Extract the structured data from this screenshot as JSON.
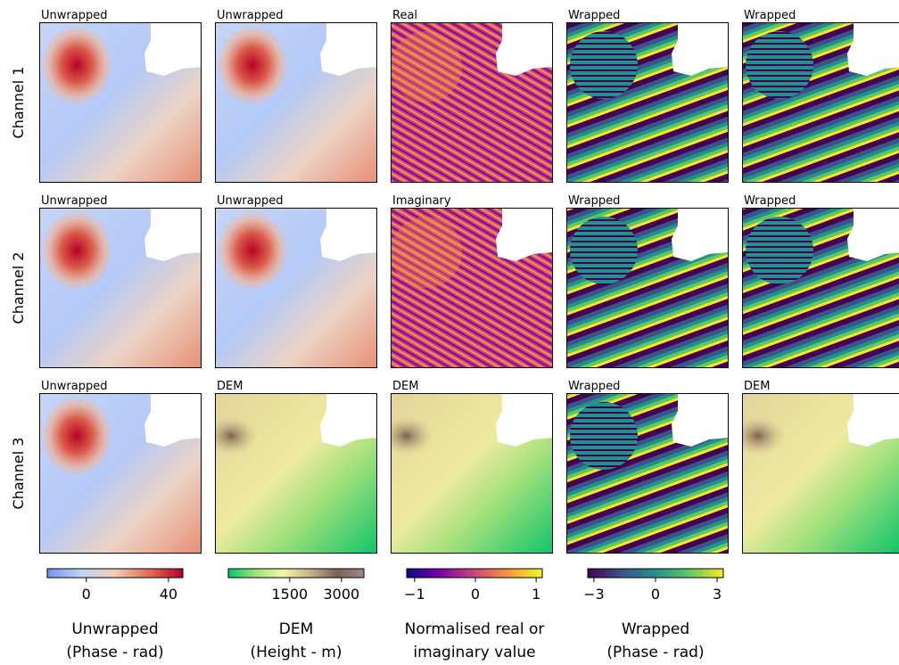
{
  "figure": {
    "rows": [
      {
        "label": "Channel 1",
        "panels": [
          "Unwrapped",
          "Unwrapped",
          "Real",
          "Wrapped",
          "Wrapped"
        ]
      },
      {
        "label": "Channel 2",
        "panels": [
          "Unwrapped",
          "Unwrapped",
          "Imaginary",
          "Wrapped",
          "Wrapped"
        ]
      },
      {
        "label": "Channel 3",
        "panels": [
          "Unwrapped",
          "DEM",
          "DEM",
          "Wrapped",
          "DEM"
        ]
      }
    ],
    "colorbars": [
      {
        "label": [
          "Unwrapped",
          "(Phase - rad)"
        ],
        "lim": [
          -19,
          47
        ],
        "ticks": [
          0,
          40
        ],
        "colors": [
          "#6f92f3",
          "#c0d4f5",
          "#f2cbb7",
          "#e36c55",
          "#b40426"
        ]
      },
      {
        "label": [
          "DEM",
          "(Height - m)"
        ],
        "lim": [
          -280,
          3650
        ],
        "ticks": [
          1500,
          3000
        ],
        "colors": [
          "#00c66a",
          "#9be47a",
          "#f6f6a6",
          "#c8b58a",
          "#7d6152",
          "#9a8a8a"
        ]
      },
      {
        "label": [
          "Normalised real or",
          "imaginary value"
        ],
        "lim": [
          -1.13,
          1.1
        ],
        "ticks": [
          {
            "value": -1,
            "label": "−1"
          },
          0,
          1
        ],
        "colors": [
          "#0d0887",
          "#7e03a8",
          "#cc4778",
          "#f89540",
          "#f0f921"
        ]
      },
      {
        "label": [
          "Wrapped",
          "(Phase - rad)"
        ],
        "lim": [
          -3.3,
          3.3
        ],
        "ticks": [
          {
            "value": -3,
            "label": "−3"
          },
          0,
          3
        ],
        "colors": [
          "#440154",
          "#3b528b",
          "#21918c",
          "#5ec962",
          "#fde725"
        ]
      }
    ]
  }
}
